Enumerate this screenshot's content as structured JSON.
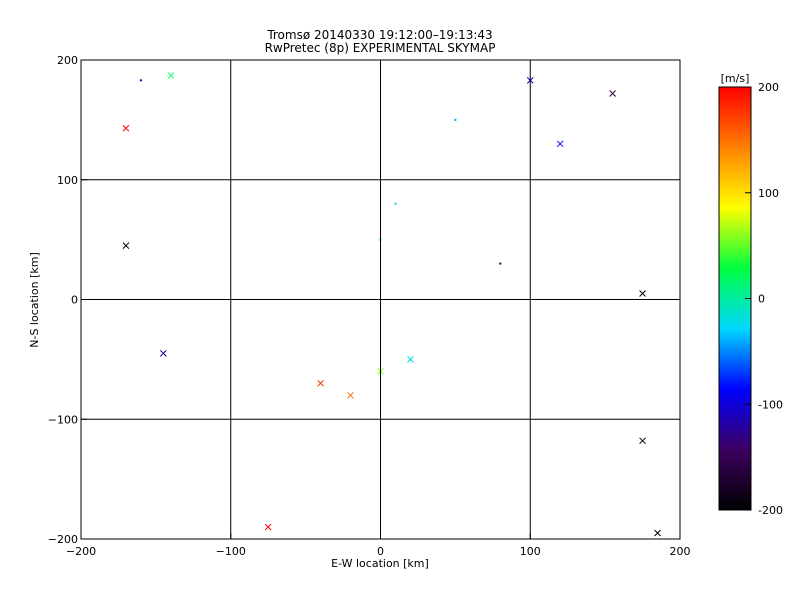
{
  "chart_data": {
    "type": "scatter",
    "title": "Tromsø 20140330 19:12:00–19:13:43",
    "subtitle": "RwPretec (8p) EXPERIMENTAL SKYMAP",
    "xlabel": "E-W location [km]",
    "ylabel": "N-S location [km]",
    "xlim": [
      -200,
      200
    ],
    "ylim": [
      -200,
      200
    ],
    "xticks": [
      -200,
      -100,
      0,
      100,
      200
    ],
    "yticks": [
      -200,
      -100,
      0,
      100,
      200
    ],
    "grid": true,
    "marker_types": [
      "cross",
      "dot"
    ],
    "colorbar": {
      "label": "[m/s]",
      "range": [
        -200,
        200
      ],
      "ticks": [
        200,
        100,
        0,
        -100,
        -200
      ],
      "colormap": [
        "#000000",
        "#3c0060",
        "#0000ff",
        "#00d8ff",
        "#00ff40",
        "#ffff00",
        "#ff8000",
        "#ff0000"
      ]
    },
    "sample_points": [
      {
        "x": -170,
        "y": 143,
        "v": 200,
        "m": "cross"
      },
      {
        "x": -160,
        "y": 183,
        "v": -110,
        "m": "dot"
      },
      {
        "x": -140,
        "y": 187,
        "v": 20,
        "m": "cross"
      },
      {
        "x": -170,
        "y": 45,
        "v": -200,
        "m": "cross"
      },
      {
        "x": -145,
        "y": -45,
        "v": -120,
        "m": "cross"
      },
      {
        "x": 100,
        "y": 183,
        "v": -100,
        "m": "cross"
      },
      {
        "x": 155,
        "y": 172,
        "v": -160,
        "m": "cross"
      },
      {
        "x": 175,
        "y": 5,
        "v": -200,
        "m": "cross"
      },
      {
        "x": 175,
        "y": -118,
        "v": -200,
        "m": "cross"
      },
      {
        "x": 185,
        "y": -195,
        "v": -200,
        "m": "cross"
      },
      {
        "x": -75,
        "y": -190,
        "v": 200,
        "m": "cross"
      },
      {
        "x": -40,
        "y": -70,
        "v": 180,
        "m": "cross"
      },
      {
        "x": -20,
        "y": -80,
        "v": 150,
        "m": "cross"
      },
      {
        "x": 0,
        "y": -60,
        "v": 60,
        "m": "cross"
      },
      {
        "x": 20,
        "y": -50,
        "v": -20,
        "m": "cross"
      },
      {
        "x": 0,
        "y": 50,
        "v": 30,
        "m": "dot"
      },
      {
        "x": 10,
        "y": 80,
        "v": -20,
        "m": "dot"
      },
      {
        "x": 50,
        "y": 150,
        "v": -40,
        "m": "dot"
      },
      {
        "x": 80,
        "y": 30,
        "v": -150,
        "m": "dot"
      },
      {
        "x": 120,
        "y": 130,
        "v": -80,
        "m": "cross"
      }
    ]
  }
}
